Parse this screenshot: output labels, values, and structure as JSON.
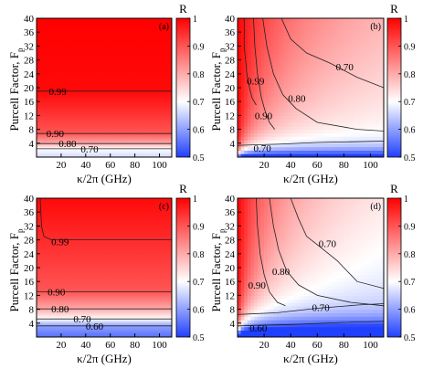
{
  "figure": {
    "y_axis_label": "Purcell Factor, F",
    "y_axis_label_sub": "p",
    "x_axis_label": "κ/2π (GHz)",
    "colorbar_title": "R"
  },
  "chart_data": [
    {
      "type": "heatmap",
      "panel_label": "(a)",
      "x_ticks": [
        20,
        40,
        60,
        80,
        100
      ],
      "y_ticks": [
        4,
        8,
        12,
        16,
        20,
        24,
        28,
        32,
        36,
        40
      ],
      "xlim": [
        0,
        110
      ],
      "ylim": [
        0,
        40
      ],
      "xlabel": "κ/2π (GHz)",
      "ylabel": "Purcell Factor, Fp",
      "colorbar": {
        "ticks": [
          0.5,
          0.6,
          0.7,
          0.8,
          0.9,
          1
        ],
        "range": [
          0.5,
          1
        ],
        "colors": [
          "#2040ff",
          "#ffffff",
          "#ff0000"
        ]
      },
      "contours": [
        {
          "level": "0.99",
          "points": [
            [
              0,
              19
            ],
            [
              110,
              19
            ]
          ],
          "label_x": 10
        },
        {
          "level": "0.90",
          "points": [
            [
              0,
              6.8
            ],
            [
              110,
              6.8
            ]
          ],
          "label_x": 8
        },
        {
          "level": "0.80",
          "points": [
            [
              0,
              3.9
            ],
            [
              110,
              3.9
            ]
          ],
          "label_x": 18
        },
        {
          "level": "0.70",
          "points": [
            [
              0,
              2.4
            ],
            [
              110,
              2.4
            ]
          ],
          "label_x": 36
        }
      ]
    },
    {
      "type": "heatmap",
      "panel_label": "(b)",
      "x_ticks": [
        20,
        40,
        60,
        80,
        100
      ],
      "y_ticks": [
        4,
        8,
        12,
        16,
        20,
        24,
        28,
        32,
        36,
        40
      ],
      "xlim": [
        0,
        110
      ],
      "ylim": [
        0,
        40
      ],
      "xlabel": "κ/2π (GHz)",
      "ylabel": "Purcell Factor, Fp",
      "colorbar": {
        "ticks": [
          0.5,
          0.6,
          0.7,
          0.8,
          0.9,
          1
        ],
        "range": [
          0.5,
          1
        ],
        "colors": [
          "#2040ff",
          "#ffffff",
          "#ff0000"
        ]
      },
      "contours": [
        {
          "level": "0.99",
          "points": [
            [
              5,
              40
            ],
            [
              5,
              32
            ],
            [
              7,
              24
            ],
            [
              9,
              20
            ],
            [
              11,
              17
            ],
            [
              14,
              15
            ]
          ],
          "label_x": 7,
          "label_y": 22
        },
        {
          "level": "0.90",
          "points": [
            [
              12,
              40
            ],
            [
              13,
              32
            ],
            [
              15,
              24
            ],
            [
              18,
              17
            ],
            [
              21,
              13
            ],
            [
              24,
              10
            ],
            [
              28,
              8
            ]
          ],
          "label_x": 13,
          "label_y": 12
        },
        {
          "level": "0.80",
          "points": [
            [
              19,
              40
            ],
            [
              22,
              32
            ],
            [
              27,
              24
            ],
            [
              34,
              18
            ],
            [
              44,
              14
            ],
            [
              60,
              10
            ],
            [
              90,
              8
            ],
            [
              110,
              7.5
            ]
          ],
          "label_x": 38,
          "label_y": 17
        },
        {
          "level": "0.70",
          "points": [
            [
              33,
              40
            ],
            [
              40,
              34
            ],
            [
              52,
              30
            ],
            [
              70,
              27
            ],
            [
              90,
              23
            ],
            [
              110,
              20
            ]
          ],
          "label_x": 74,
          "label_y": 26
        },
        {
          "level": "0.70",
          "points": [
            [
              0,
              3.4
            ],
            [
              30,
              3.7
            ],
            [
              60,
              4.2
            ],
            [
              110,
              4.6
            ]
          ],
          "label_x": 12,
          "label_y": 2.6
        }
      ]
    },
    {
      "type": "heatmap",
      "panel_label": "(c)",
      "x_ticks": [
        20,
        40,
        60,
        80,
        100
      ],
      "y_ticks": [
        4,
        8,
        12,
        16,
        20,
        24,
        28,
        32,
        36,
        40
      ],
      "xlim": [
        0,
        110
      ],
      "ylim": [
        0,
        40
      ],
      "xlabel": "κ/2π (GHz)",
      "ylabel": "Purcell Factor, Fp",
      "colorbar": {
        "ticks": [
          0.5,
          0.6,
          0.7,
          0.8,
          0.9,
          1
        ],
        "range": [
          0.5,
          1
        ],
        "colors": [
          "#2040ff",
          "#ffffff",
          "#ff0000"
        ]
      },
      "contours": [
        {
          "level": "0.99",
          "points": [
            [
              3,
              40
            ],
            [
              4,
              32
            ],
            [
              6,
              29
            ],
            [
              12,
              28
            ],
            [
              110,
              28
            ]
          ],
          "label_x": 12,
          "label_y": 27.5
        },
        {
          "level": "0.90",
          "points": [
            [
              0,
              13
            ],
            [
              110,
              13
            ]
          ],
          "label_x": 9
        },
        {
          "level": "0.80",
          "points": [
            [
              0,
              8.1
            ],
            [
              110,
              8.1
            ]
          ],
          "label_x": 12
        },
        {
          "level": "0.70",
          "points": [
            [
              0,
              5.2
            ],
            [
              110,
              5.2
            ]
          ],
          "label_x": 30
        },
        {
          "level": "0.60",
          "points": [
            [
              0,
              3.2
            ],
            [
              110,
              3.2
            ]
          ],
          "label_x": 40
        }
      ]
    },
    {
      "type": "heatmap",
      "panel_label": "(d)",
      "x_ticks": [
        20,
        40,
        60,
        80,
        100
      ],
      "y_ticks": [
        4,
        8,
        12,
        16,
        20,
        24,
        28,
        32,
        36,
        40
      ],
      "xlim": [
        0,
        110
      ],
      "ylim": [
        0,
        40
      ],
      "xlabel": "κ/2π (GHz)",
      "ylabel": "Purcell Factor, Fp",
      "colorbar": {
        "ticks": [
          0.5,
          0.6,
          0.7,
          0.8,
          0.9,
          1
        ],
        "range": [
          0.5,
          1
        ],
        "colors": [
          "#2040ff",
          "#ffffff",
          "#ff0000"
        ]
      },
      "contours": [
        {
          "level": "0.90",
          "points": [
            [
              14,
              40
            ],
            [
              15,
              32
            ],
            [
              17,
              24
            ],
            [
              20,
              18
            ],
            [
              24,
              13
            ],
            [
              30,
              10
            ],
            [
              36,
              9
            ]
          ],
          "label_x": 8,
          "label_y": 15
        },
        {
          "level": "0.80",
          "points": [
            [
              24,
              40
            ],
            [
              27,
              32
            ],
            [
              31,
              25
            ],
            [
              37,
              19
            ],
            [
              46,
              15
            ],
            [
              60,
              12
            ],
            [
              85,
              10
            ],
            [
              110,
              9
            ]
          ],
          "label_x": 26,
          "label_y": 19
        },
        {
          "level": "0.70",
          "points": [
            [
              40,
              40
            ],
            [
              46,
              34
            ],
            [
              52,
              29
            ],
            [
              62,
              26
            ],
            [
              75,
              22
            ],
            [
              90,
              16
            ],
            [
              110,
              14
            ]
          ],
          "label_x": 61,
          "label_y": 27
        },
        {
          "level": "0.70",
          "points": [
            [
              0,
              6.5
            ],
            [
              30,
              7
            ],
            [
              60,
              8.3
            ],
            [
              90,
              9.2
            ],
            [
              110,
              9.6
            ]
          ],
          "label_x": 56,
          "label_y": 8.5
        },
        {
          "level": "0.60",
          "points": [
            [
              0,
              3.2
            ],
            [
              40,
              3.6
            ],
            [
              80,
              4.2
            ],
            [
              110,
              4.5
            ]
          ],
          "label_x": 9,
          "label_y": 2.6
        }
      ]
    }
  ]
}
